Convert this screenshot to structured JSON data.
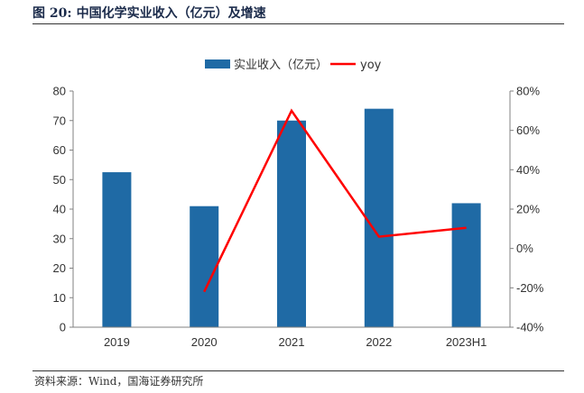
{
  "figure": {
    "label": "图 20:",
    "title": "中国化学实业收入（亿元）及增速",
    "source": "资料来源：Wind，国海证券研究所"
  },
  "chart_data": {
    "type": "bar",
    "categories": [
      "2019",
      "2020",
      "2021",
      "2022",
      "2023H1"
    ],
    "series": [
      {
        "name": "实业收入（亿元）",
        "kind": "bar",
        "axis": "left",
        "values": [
          52.5,
          41.0,
          70.0,
          74.0,
          42.0
        ],
        "color": "#1f6aa5"
      },
      {
        "name": "yoy",
        "kind": "line",
        "axis": "right",
        "values": [
          null,
          -22,
          70,
          6,
          10.5
        ],
        "color": "#ff0000"
      }
    ],
    "y_left": {
      "min": 0,
      "max": 80,
      "step": 10,
      "ticks": [
        "0",
        "10",
        "20",
        "30",
        "40",
        "50",
        "60",
        "70",
        "80"
      ]
    },
    "y_right": {
      "min": -40,
      "max": 80,
      "step": 20,
      "ticks": [
        "-40%",
        "-20%",
        "0%",
        "20%",
        "40%",
        "60%",
        "80%"
      ]
    },
    "legend_position": "top-center",
    "grid": false
  }
}
